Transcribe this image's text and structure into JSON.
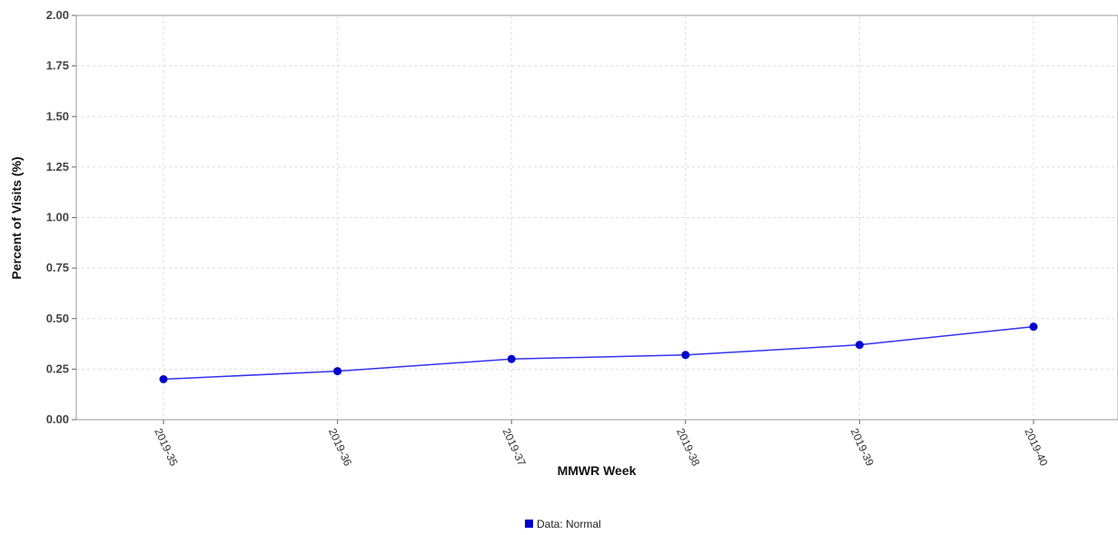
{
  "chart_data": {
    "type": "line",
    "title": "",
    "xlabel": "MMWR Week",
    "ylabel": "Percent of Visits (%)",
    "categories": [
      "2019-35",
      "2019-36",
      "2019-37",
      "2019-38",
      "2019-39",
      "2019-40"
    ],
    "series": [
      {
        "name": "Data: Normal",
        "values": [
          0.2,
          0.24,
          0.3,
          0.32,
          0.37,
          0.46
        ],
        "color": "#0000cc"
      }
    ],
    "ylim": [
      0,
      2.0
    ],
    "yticks": [
      "0.00",
      "0.25",
      "0.50",
      "0.75",
      "1.00",
      "1.25",
      "1.50",
      "1.75",
      "2.00"
    ],
    "grid": true,
    "legend_position": "bottom-center",
    "line_color": "#3333ee",
    "marker_color": "#0000cc"
  }
}
